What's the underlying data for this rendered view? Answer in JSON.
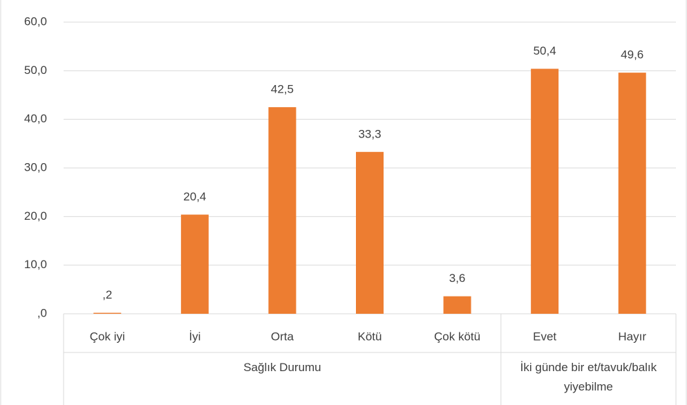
{
  "chart_data": {
    "type": "bar",
    "color": "#ed7d31",
    "grid": true,
    "ylim": [
      0,
      60
    ],
    "yticks": [
      {
        "value": 0,
        "label": ",0"
      },
      {
        "value": 10,
        "label": "10,0"
      },
      {
        "value": 20,
        "label": "20,0"
      },
      {
        "value": 30,
        "label": "30,0"
      },
      {
        "value": 40,
        "label": "40,0"
      },
      {
        "value": 50,
        "label": "50,0"
      },
      {
        "value": 60,
        "label": "60,0"
      }
    ],
    "groups": [
      {
        "name": "Sağlık Durumu",
        "categories": [
          "Çok iyi",
          "İyi",
          "Orta",
          "Kötü",
          "Çok kötü"
        ],
        "values": [
          0.2,
          20.4,
          42.5,
          33.3,
          3.6
        ],
        "value_labels": [
          ",2",
          "20,4",
          "42,5",
          "33,3",
          "3,6"
        ]
      },
      {
        "name": "İki günde bir et/tavuk/balık yiyebilme",
        "categories": [
          "Evet",
          "Hayır"
        ],
        "values": [
          50.4,
          49.6
        ],
        "value_labels": [
          "50,4",
          "49,6"
        ]
      }
    ]
  }
}
